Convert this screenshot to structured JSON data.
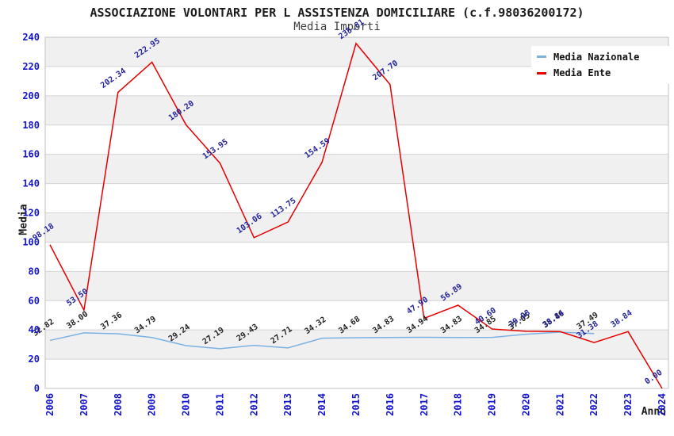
{
  "header": {
    "title": "ASSOCIAZIONE VOLONTARI PER L ASSISTENZA DOMICILIARE (c.f.98036200172)",
    "subtitle": "Media Importi"
  },
  "axes": {
    "y_label": "Media",
    "x_label": "Anno"
  },
  "legend": {
    "position": "top-right",
    "items": [
      {
        "label": "Media Nazionale",
        "color": "#7ab2e2"
      },
      {
        "label": "Media Ente",
        "color": "#e60000"
      }
    ]
  },
  "colors": {
    "tick_text": "#1414cc",
    "band": "#f0f0f0",
    "gridline": "#d4d4d4",
    "plot_border": "#c0c0c0",
    "nazionale_line": "#7ab2e2",
    "ente_line": "#e60000",
    "nazionale_label": "#222222",
    "ente_label": "#232399"
  },
  "chart_data": {
    "type": "line",
    "title": "ASSOCIAZIONE VOLONTARI PER L ASSISTENZA DOMICILIARE (c.f.98036200172)",
    "subtitle": "Media Importi",
    "xlabel": "Anno",
    "ylabel": "Media",
    "ylim": [
      0,
      240
    ],
    "ytick_step": 20,
    "grid": true,
    "banded_background": true,
    "legend_position": "top-right",
    "categories": [
      "2006",
      "2007",
      "2008",
      "2009",
      "2010",
      "2011",
      "2012",
      "2013",
      "2014",
      "2015",
      "2016",
      "2017",
      "2018",
      "2019",
      "2020",
      "2021",
      "2022",
      "2023",
      "2024"
    ],
    "series": [
      {
        "name": "Media Nazionale",
        "color": "#7ab2e2",
        "label_color": "#222222",
        "values": [
          32.82,
          38.0,
          37.36,
          34.79,
          29.24,
          27.19,
          29.43,
          27.71,
          34.32,
          34.68,
          34.83,
          34.94,
          34.83,
          34.85,
          37.05,
          38.46,
          37.49
        ]
      },
      {
        "name": "Media Ente",
        "color": "#e60000",
        "label_color": "#232399",
        "values": [
          98.18,
          53.5,
          202.34,
          222.95,
          180.2,
          153.95,
          103.06,
          113.75,
          154.59,
          235.81,
          207.7,
          47.9,
          56.89,
          40.6,
          39.08,
          38.84,
          31.38,
          38.84,
          0.0
        ]
      }
    ]
  }
}
